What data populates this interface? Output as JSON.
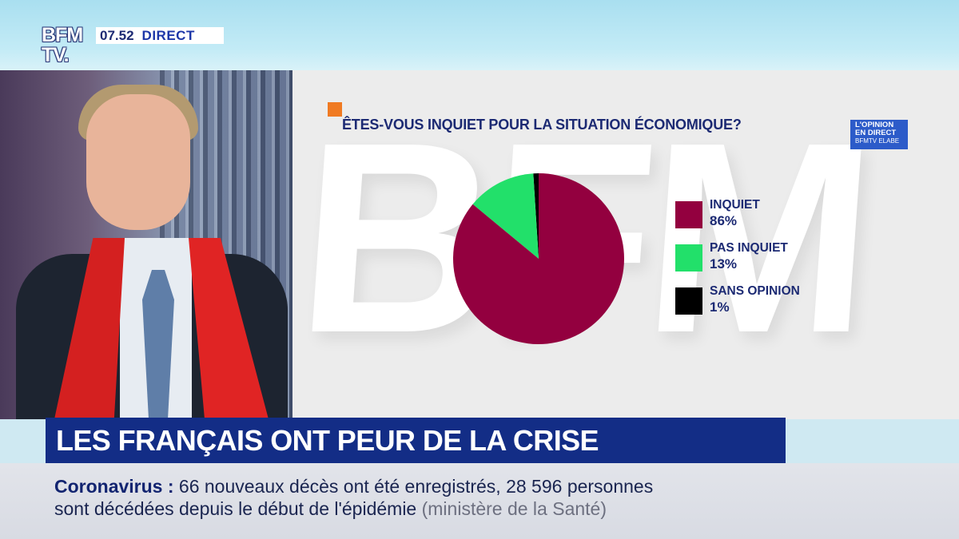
{
  "channel": {
    "logo_line1": "BFM",
    "logo_line2": "TV.",
    "clock": "07.52",
    "live_label": "DIRECT"
  },
  "graphic": {
    "brand_watermark": "BFM",
    "badge": {
      "line1": "L'OPINION",
      "line2": "EN DIRECT",
      "line3": "BFMTV ELABE"
    },
    "accent_color": "#f07a22"
  },
  "chart_data": {
    "type": "pie",
    "title": "ÊTES-VOUS INQUIET POUR LA SITUATION ÉCONOMIQUE?",
    "slices": [
      {
        "label": "INQUIET",
        "value": 86,
        "display": "86%",
        "color": "#93003f"
      },
      {
        "label": "PAS INQUIET",
        "value": 13,
        "display": "13%",
        "color": "#22e06a"
      },
      {
        "label": "SANS OPINION",
        "value": 1,
        "display": "1%",
        "color": "#000000"
      }
    ],
    "legend_position": "right"
  },
  "headline": "LES FRANÇAIS ONT PEUR DE LA CRISE",
  "ticker": {
    "topic": "Coronavirus :",
    "line1": "66 nouveaux décès ont été enregistrés, 28 596 personnes",
    "line2": "sont décédées depuis le début de l'épidémie",
    "source": "(ministère de la Santé)"
  }
}
